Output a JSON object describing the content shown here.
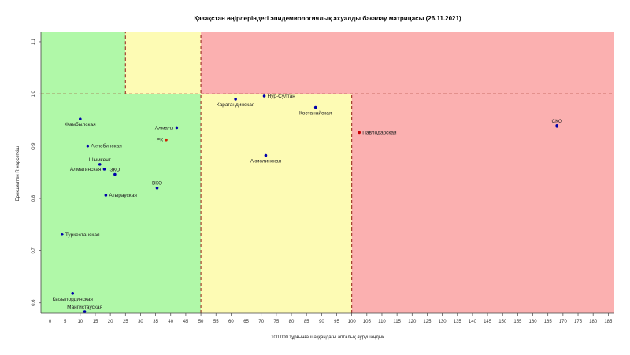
{
  "chart_data": {
    "type": "scatter",
    "title": "Қазақстан өңірлеріндегі эпидемиологиялық ахуалды бағалау матрицасы  (26.11.2021)",
    "xlabel": "100 000 тұрғынға шаққандағы апталық аурушаңдық",
    "ylabel": "Ерекшелтен R нарсеткіші",
    "xlim": [
      -3,
      187
    ],
    "ylim": [
      0.58,
      1.118
    ],
    "x_ticks": [
      0,
      5,
      10,
      15,
      20,
      25,
      30,
      35,
      40,
      45,
      50,
      55,
      60,
      65,
      70,
      75,
      80,
      85,
      90,
      95,
      100,
      105,
      110,
      115,
      120,
      125,
      130,
      135,
      140,
      145,
      150,
      155,
      160,
      165,
      170,
      175,
      180,
      185
    ],
    "y_ticks": [
      0.6,
      0.7,
      0.8,
      0.9,
      1.0,
      1.1
    ],
    "zones": [
      {
        "name": "green-low",
        "x": [
          -3,
          50
        ],
        "y": [
          0.58,
          1.0
        ],
        "color": "#b0f8a8"
      },
      {
        "name": "green-high",
        "x": [
          -3,
          25
        ],
        "y": [
          1.0,
          1.118
        ],
        "color": "#b0f8a8"
      },
      {
        "name": "yellow-high",
        "x": [
          25,
          50
        ],
        "y": [
          1.0,
          1.118
        ],
        "color": "#fdfbb4"
      },
      {
        "name": "yellow-low",
        "x": [
          50,
          100
        ],
        "y": [
          0.58,
          1.0
        ],
        "color": "#fdfbb4"
      },
      {
        "name": "red-high",
        "x": [
          50,
          187
        ],
        "y": [
          1.0,
          1.118
        ],
        "color": "#fbb0b0"
      },
      {
        "name": "red-low",
        "x": [
          100,
          187
        ],
        "y": [
          0.58,
          1.0
        ],
        "color": "#fbb0b0"
      }
    ],
    "threshold_lines": [
      {
        "axis": "x",
        "value": 25,
        "from": 1.0,
        "to": 1.118
      },
      {
        "axis": "x",
        "value": 50,
        "from": 0.58,
        "to": 1.118
      },
      {
        "axis": "x",
        "value": 100,
        "from": 0.58,
        "to": 1.0
      },
      {
        "axis": "y",
        "value": 1.0,
        "from": -3,
        "to": 187
      }
    ],
    "points": [
      {
        "label": "Жамбылская",
        "x": 10.0,
        "y": 0.952,
        "color": "#0000aa",
        "anchor": "below"
      },
      {
        "label": "Актюбинская",
        "x": 12.5,
        "y": 0.9,
        "color": "#0000aa",
        "anchor": "right"
      },
      {
        "label": "Шымкент",
        "x": 16.5,
        "y": 0.865,
        "color": "#0000aa",
        "anchor": "above"
      },
      {
        "label": "Алматинская",
        "x": 18.0,
        "y": 0.856,
        "color": "#0000aa",
        "anchor": "left"
      },
      {
        "label": "ЗКО",
        "x": 21.5,
        "y": 0.846,
        "color": "#0000aa",
        "anchor": "above"
      },
      {
        "label": "Атырауская",
        "x": 18.5,
        "y": 0.806,
        "color": "#0000aa",
        "anchor": "right"
      },
      {
        "label": "Алматы",
        "x": 42.0,
        "y": 0.935,
        "color": "#0000aa",
        "anchor": "left"
      },
      {
        "label": "РК",
        "x": 38.5,
        "y": 0.912,
        "color": "#cc2200",
        "anchor": "left"
      },
      {
        "label": "ВКО",
        "x": 35.5,
        "y": 0.82,
        "color": "#0000aa",
        "anchor": "above"
      },
      {
        "label": "Туркестанская",
        "x": 4.0,
        "y": 0.731,
        "color": "#0000aa",
        "anchor": "right"
      },
      {
        "label": "Кызылординская",
        "x": 7.5,
        "y": 0.618,
        "color": "#0000aa",
        "anchor": "below"
      },
      {
        "label": "Мангистауская",
        "x": 11.5,
        "y": 0.583,
        "color": "#0000aa",
        "anchor": "above"
      },
      {
        "label": "Карагандинская",
        "x": 61.5,
        "y": 0.99,
        "color": "#0000aa",
        "anchor": "below"
      },
      {
        "label": "Нур-Султан",
        "x": 71.0,
        "y": 0.996,
        "color": "#0000aa",
        "anchor": "right"
      },
      {
        "label": "Костанайская",
        "x": 88.0,
        "y": 0.974,
        "color": "#0000aa",
        "anchor": "below"
      },
      {
        "label": "Акмолинская",
        "x": 71.5,
        "y": 0.882,
        "color": "#0000aa",
        "anchor": "below"
      },
      {
        "label": "Павлодарская",
        "x": 102.5,
        "y": 0.926,
        "color": "#cc0000",
        "anchor": "right"
      },
      {
        "label": "СКО",
        "x": 168.0,
        "y": 0.939,
        "color": "#0000aa",
        "anchor": "above"
      }
    ]
  }
}
